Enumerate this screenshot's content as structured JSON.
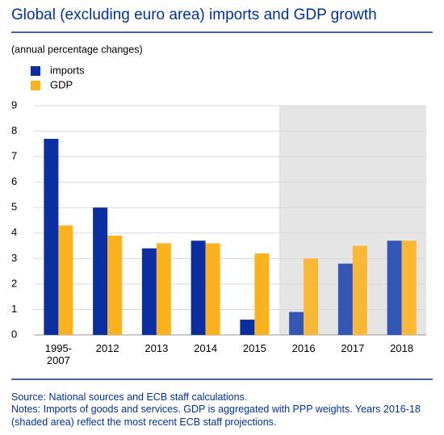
{
  "chart_data": {
    "type": "bar",
    "title": "Global (excluding euro area) imports and GDP growth",
    "subtitle": "(annual percentage changes)",
    "categories": [
      "1995-2007",
      "2012",
      "2013",
      "2014",
      "2015",
      "2016",
      "2017",
      "2018"
    ],
    "series": [
      {
        "name": "imports",
        "color": "#0b2fa0",
        "projection_color": "#3456b4",
        "values": [
          7.7,
          5.0,
          3.4,
          3.7,
          0.6,
          0.9,
          2.8,
          3.7
        ]
      },
      {
        "name": "GDP",
        "color": "#fbb21f",
        "projection_color": "#fbb836",
        "values": [
          4.3,
          3.9,
          3.6,
          3.6,
          3.2,
          3.0,
          3.5,
          3.7
        ]
      }
    ],
    "shaded": {
      "from": 5,
      "to": 7,
      "color": "#e5e5e5"
    },
    "ylim": [
      0,
      9
    ],
    "yticks": [
      0,
      1,
      2,
      3,
      4,
      5,
      6,
      7,
      8,
      9
    ],
    "grid": true,
    "source": "Source: National sources and ECB staff calculations.",
    "notes": "Notes: Imports of goods and services. GDP is aggregated with PPP weights. Years 2016-18 (shaded area) reflect the most recent ECB staff projections."
  }
}
